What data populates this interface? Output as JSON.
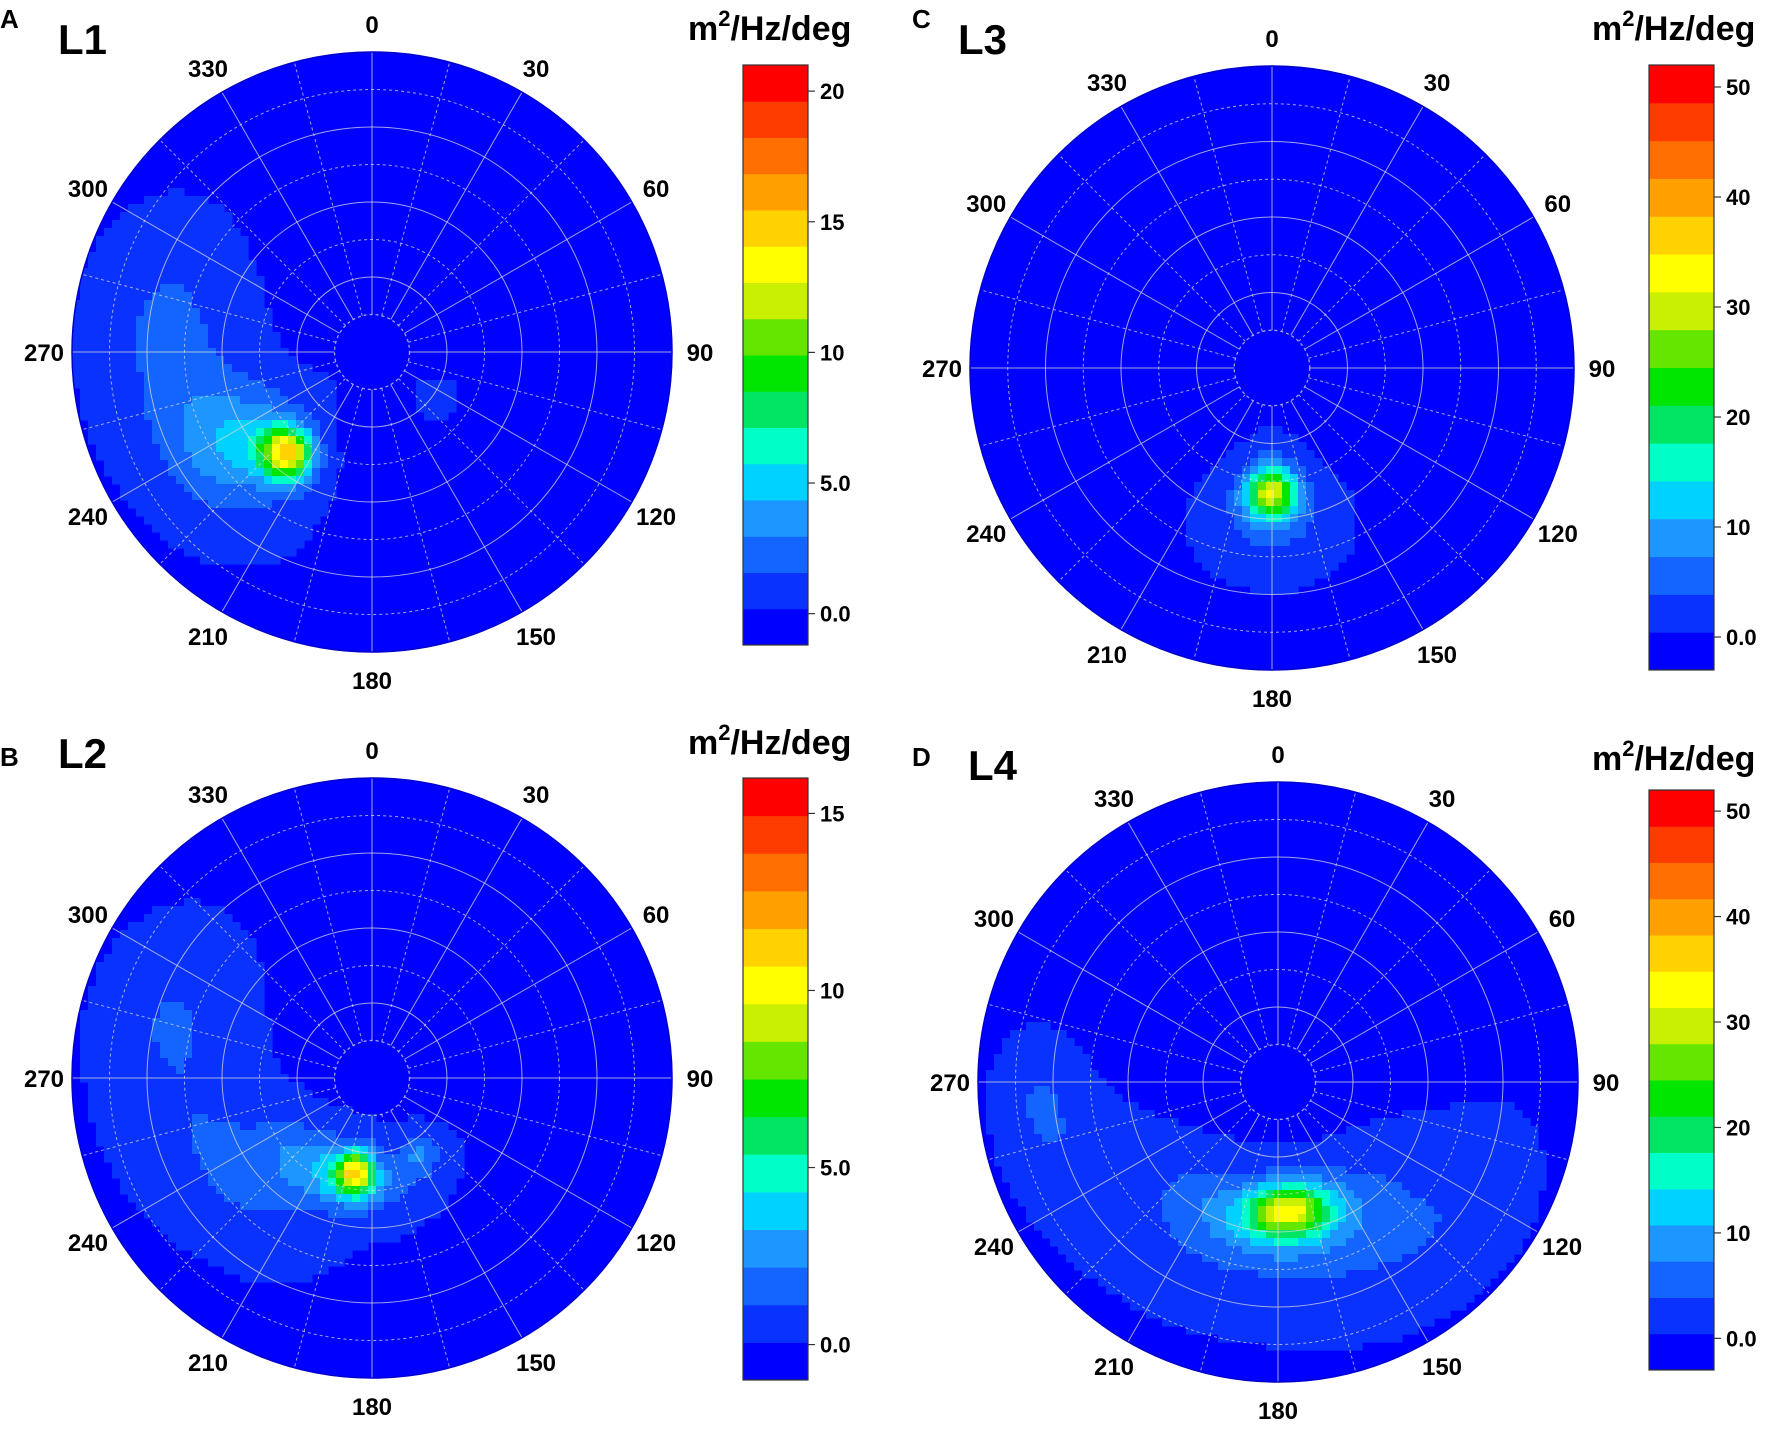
{
  "figure": {
    "colormap": [
      "#0000ff",
      "#0a32ff",
      "#1464ff",
      "#1e96ff",
      "#00d2ff",
      "#00ffc8",
      "#00e664",
      "#00e600",
      "#64e600",
      "#c8f000",
      "#ffff00",
      "#ffd200",
      "#ffa000",
      "#ff6e00",
      "#ff3c00",
      "#ff0000"
    ],
    "polar_fill_color": "#0000ff",
    "grid_color": "#d8d8d8"
  },
  "chart_data": [
    {
      "type": "heatmap",
      "subtype": "polar-directional-spectrum",
      "panel_letter": "A",
      "title": "L1",
      "unit_base": "m",
      "unit_sup": "2",
      "unit_rest": "/Hz/deg",
      "angle_labels": [
        "0",
        "30",
        "60",
        "90",
        "120",
        "150",
        "180",
        "210",
        "240",
        "270",
        "300",
        "330"
      ],
      "colorbar": {
        "min": -1.2,
        "max": 21,
        "ticks": [
          0,
          5,
          10,
          15,
          20
        ],
        "tick_labels": [
          "0.0",
          "5.0",
          "10",
          "15",
          "20"
        ]
      },
      "peaks": [
        {
          "direction_deg": 220,
          "radius_frac": 0.44,
          "value": 13.5,
          "spread_deg": 8,
          "spread_r": 0.06
        },
        {
          "direction_deg": 235,
          "radius_frac": 0.53,
          "value": 4.0,
          "spread_deg": 15,
          "spread_r": 0.15
        },
        {
          "direction_deg": 262,
          "radius_frac": 0.64,
          "value": 1.6,
          "spread_deg": 22,
          "spread_r": 0.16
        },
        {
          "direction_deg": 284,
          "radius_frac": 0.72,
          "value": 0.9,
          "spread_deg": 14,
          "spread_r": 0.14
        },
        {
          "direction_deg": 125,
          "radius_frac": 0.26,
          "value": 1.2,
          "spread_deg": 8,
          "spread_r": 0.04
        }
      ]
    },
    {
      "type": "heatmap",
      "subtype": "polar-directional-spectrum",
      "panel_letter": "B",
      "title": "L2",
      "unit_base": "m",
      "unit_sup": "2",
      "unit_rest": "/Hz/deg",
      "angle_labels": [
        "0",
        "30",
        "60",
        "90",
        "120",
        "150",
        "180",
        "210",
        "240",
        "270",
        "300",
        "330"
      ],
      "colorbar": {
        "min": -1,
        "max": 16,
        "ticks": [
          0,
          5,
          10,
          15
        ],
        "tick_labels": [
          "0.0",
          "5.0",
          "10",
          "15"
        ]
      },
      "peaks": [
        {
          "direction_deg": 190,
          "radius_frac": 0.32,
          "value": 8.5,
          "spread_deg": 8,
          "spread_r": 0.05
        },
        {
          "direction_deg": 200,
          "radius_frac": 0.34,
          "value": 3.5,
          "spread_deg": 25,
          "spread_r": 0.08
        },
        {
          "direction_deg": 148,
          "radius_frac": 0.3,
          "value": 2.0,
          "spread_deg": 10,
          "spread_r": 0.05
        },
        {
          "direction_deg": 230,
          "radius_frac": 0.52,
          "value": 1.4,
          "spread_deg": 18,
          "spread_r": 0.12
        },
        {
          "direction_deg": 268,
          "radius_frac": 0.64,
          "value": 0.9,
          "spread_deg": 22,
          "spread_r": 0.14
        },
        {
          "direction_deg": 290,
          "radius_frac": 0.72,
          "value": 0.7,
          "spread_deg": 12,
          "spread_r": 0.12
        }
      ]
    },
    {
      "type": "heatmap",
      "subtype": "polar-directional-spectrum",
      "panel_letter": "C",
      "title": "L3",
      "unit_base": "m",
      "unit_sup": "2",
      "unit_rest": "/Hz/deg",
      "angle_labels": [
        "0",
        "30",
        "60",
        "90",
        "120",
        "150",
        "180",
        "210",
        "240",
        "270",
        "300",
        "330"
      ],
      "colorbar": {
        "min": -3,
        "max": 52,
        "ticks": [
          0,
          10,
          20,
          30,
          40,
          50
        ],
        "tick_labels": [
          "0.0",
          "10",
          "20",
          "30",
          "40",
          "50"
        ]
      },
      "peaks": [
        {
          "direction_deg": 180,
          "radius_frac": 0.41,
          "value": 27,
          "spread_deg": 8,
          "spread_r": 0.06
        },
        {
          "direction_deg": 180,
          "radius_frac": 0.47,
          "value": 6,
          "spread_deg": 14,
          "spread_r": 0.12
        }
      ]
    },
    {
      "type": "heatmap",
      "subtype": "polar-directional-spectrum",
      "panel_letter": "D",
      "title": "L4",
      "unit_base": "m",
      "unit_sup": "2",
      "unit_rest": "/Hz/deg",
      "angle_labels": [
        "0",
        "30",
        "60",
        "90",
        "120",
        "150",
        "180",
        "210",
        "240",
        "270",
        "300",
        "330"
      ],
      "colorbar": {
        "min": -3,
        "max": 52,
        "ticks": [
          0,
          10,
          20,
          30,
          40,
          50
        ],
        "tick_labels": [
          "0.0",
          "10",
          "20",
          "30",
          "40",
          "50"
        ]
      },
      "peaks": [
        {
          "direction_deg": 175,
          "radius_frac": 0.43,
          "value": 24,
          "spread_deg": 12,
          "spread_r": 0.06
        },
        {
          "direction_deg": 180,
          "radius_frac": 0.46,
          "value": 10,
          "spread_deg": 28,
          "spread_r": 0.1
        },
        {
          "direction_deg": 150,
          "radius_frac": 0.62,
          "value": 3.5,
          "spread_deg": 22,
          "spread_r": 0.15
        },
        {
          "direction_deg": 210,
          "radius_frac": 0.6,
          "value": 2.5,
          "spread_deg": 20,
          "spread_r": 0.15
        },
        {
          "direction_deg": 248,
          "radius_frac": 0.72,
          "value": 2.5,
          "spread_deg": 14,
          "spread_r": 0.12
        },
        {
          "direction_deg": 265,
          "radius_frac": 0.8,
          "value": 3.5,
          "spread_deg": 9,
          "spread_r": 0.08
        },
        {
          "direction_deg": 125,
          "radius_frac": 0.75,
          "value": 2.0,
          "spread_deg": 16,
          "spread_r": 0.12
        }
      ]
    }
  ]
}
